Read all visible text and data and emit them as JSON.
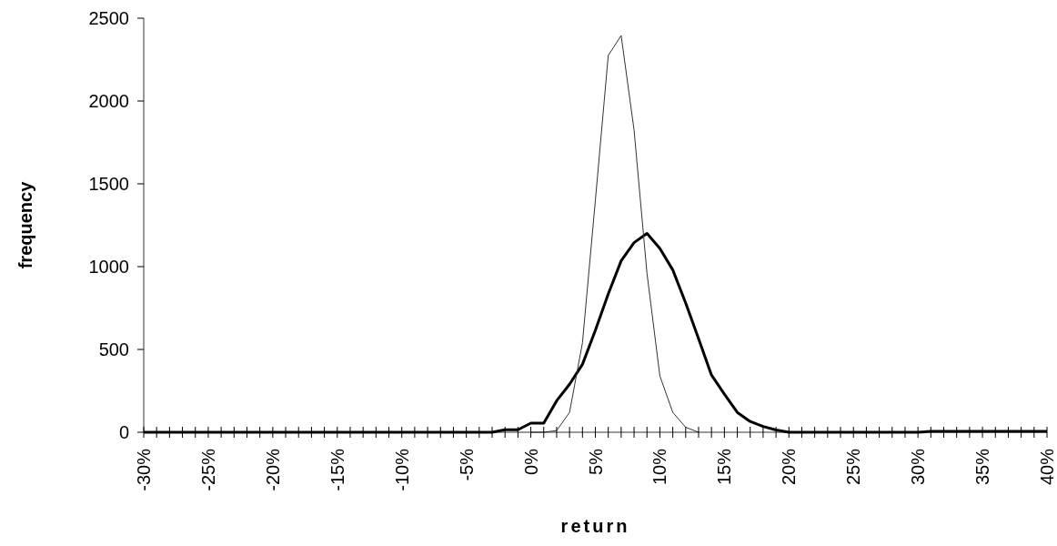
{
  "chart_data": {
    "type": "line",
    "xlabel": "return",
    "ylabel": "frequency",
    "xlim": [
      -30,
      40
    ],
    "ylim": [
      0,
      2500
    ],
    "yticks": [
      0,
      500,
      1000,
      1500,
      2000,
      2500
    ],
    "xticks": [
      {
        "value": -30,
        "label": "-30%"
      },
      {
        "value": -29,
        "label": null
      },
      {
        "value": -28,
        "label": null
      },
      {
        "value": -27,
        "label": null
      },
      {
        "value": -26,
        "label": null
      },
      {
        "value": -25,
        "label": "-25%"
      },
      {
        "value": -24,
        "label": null
      },
      {
        "value": -23,
        "label": null
      },
      {
        "value": -22,
        "label": null
      },
      {
        "value": -21,
        "label": null
      },
      {
        "value": -20,
        "label": "-20%"
      },
      {
        "value": -19,
        "label": null
      },
      {
        "value": -18,
        "label": null
      },
      {
        "value": -17,
        "label": null
      },
      {
        "value": -16,
        "label": null
      },
      {
        "value": -15,
        "label": "-15%"
      },
      {
        "value": -14,
        "label": null
      },
      {
        "value": -13,
        "label": null
      },
      {
        "value": -12,
        "label": null
      },
      {
        "value": -11,
        "label": null
      },
      {
        "value": -10,
        "label": "-10%"
      },
      {
        "value": -9,
        "label": null
      },
      {
        "value": -8,
        "label": null
      },
      {
        "value": -7,
        "label": null
      },
      {
        "value": -6,
        "label": null
      },
      {
        "value": -5,
        "label": "-5%"
      },
      {
        "value": -4,
        "label": null
      },
      {
        "value": -3,
        "label": null
      },
      {
        "value": -2,
        "label": null
      },
      {
        "value": -1,
        "label": null
      },
      {
        "value": 0,
        "label": "0%"
      },
      {
        "value": 1,
        "label": null
      },
      {
        "value": 2,
        "label": null
      },
      {
        "value": 3,
        "label": null
      },
      {
        "value": 4,
        "label": null
      },
      {
        "value": 5,
        "label": "5%"
      },
      {
        "value": 6,
        "label": null
      },
      {
        "value": 7,
        "label": null
      },
      {
        "value": 8,
        "label": null
      },
      {
        "value": 9,
        "label": null
      },
      {
        "value": 10,
        "label": "10%"
      },
      {
        "value": 11,
        "label": null
      },
      {
        "value": 12,
        "label": null
      },
      {
        "value": 13,
        "label": null
      },
      {
        "value": 14,
        "label": null
      },
      {
        "value": 15,
        "label": "15%"
      },
      {
        "value": 16,
        "label": null
      },
      {
        "value": 17,
        "label": null
      },
      {
        "value": 18,
        "label": null
      },
      {
        "value": 19,
        "label": null
      },
      {
        "value": 20,
        "label": "20%"
      },
      {
        "value": 21,
        "label": null
      },
      {
        "value": 22,
        "label": null
      },
      {
        "value": 23,
        "label": null
      },
      {
        "value": 24,
        "label": null
      },
      {
        "value": 25,
        "label": "25%"
      },
      {
        "value": 26,
        "label": null
      },
      {
        "value": 27,
        "label": null
      },
      {
        "value": 28,
        "label": null
      },
      {
        "value": 29,
        "label": null
      },
      {
        "value": 30,
        "label": "30%"
      },
      {
        "value": 31,
        "label": null
      },
      {
        "value": 32,
        "label": null
      },
      {
        "value": 33,
        "label": null
      },
      {
        "value": 34,
        "label": null
      },
      {
        "value": 35,
        "label": "35%"
      },
      {
        "value": 36,
        "label": null
      },
      {
        "value": 37,
        "label": null
      },
      {
        "value": 38,
        "label": null
      },
      {
        "value": 39,
        "label": null
      },
      {
        "value": 40,
        "label": "40%"
      }
    ],
    "grid": false,
    "marker": "none",
    "line_style": "solid",
    "series": [
      {
        "color": "#000000",
        "x": [
          -30,
          -29,
          -28,
          -27,
          -26,
          -25,
          -24,
          -23,
          -22,
          -21,
          -20,
          -19,
          -18,
          -17,
          -16,
          -15,
          -14,
          -13,
          -12,
          -11,
          -10,
          -9,
          -8,
          -7,
          -6,
          -5,
          -4,
          -3,
          -2,
          -1,
          0,
          1,
          2,
          3,
          4,
          5,
          6,
          7,
          8,
          9,
          10,
          11,
          12,
          13,
          14,
          15,
          16,
          17,
          18,
          19,
          20,
          21,
          22,
          23,
          24,
          25,
          26,
          27,
          28,
          29,
          30,
          31,
          32,
          33,
          34,
          35,
          36,
          37,
          38,
          39,
          40
        ],
        "values": [
          0,
          0,
          0,
          0,
          0,
          0,
          0,
          0,
          0,
          0,
          0,
          0,
          0,
          0,
          0,
          0,
          0,
          0,
          0,
          0,
          0,
          0,
          0,
          0,
          0,
          0,
          0,
          0,
          15,
          15,
          55,
          55,
          190,
          290,
          410,
          615,
          835,
          1035,
          1145,
          1200,
          1110,
          980,
          780,
          565,
          345,
          230,
          120,
          65,
          35,
          14,
          0,
          0,
          0,
          0,
          0,
          0,
          0,
          0,
          0,
          0,
          0,
          5,
          5,
          5,
          5,
          5,
          5,
          5,
          5,
          5,
          5
        ]
      },
      {
        "color": "#333333",
        "x": [
          0,
          1,
          2,
          3,
          4,
          5,
          6,
          7,
          8,
          9,
          10,
          11,
          12,
          13
        ],
        "values": [
          0,
          0,
          10,
          120,
          540,
          1400,
          2275,
          2395,
          1825,
          960,
          340,
          120,
          30,
          0
        ]
      }
    ]
  }
}
